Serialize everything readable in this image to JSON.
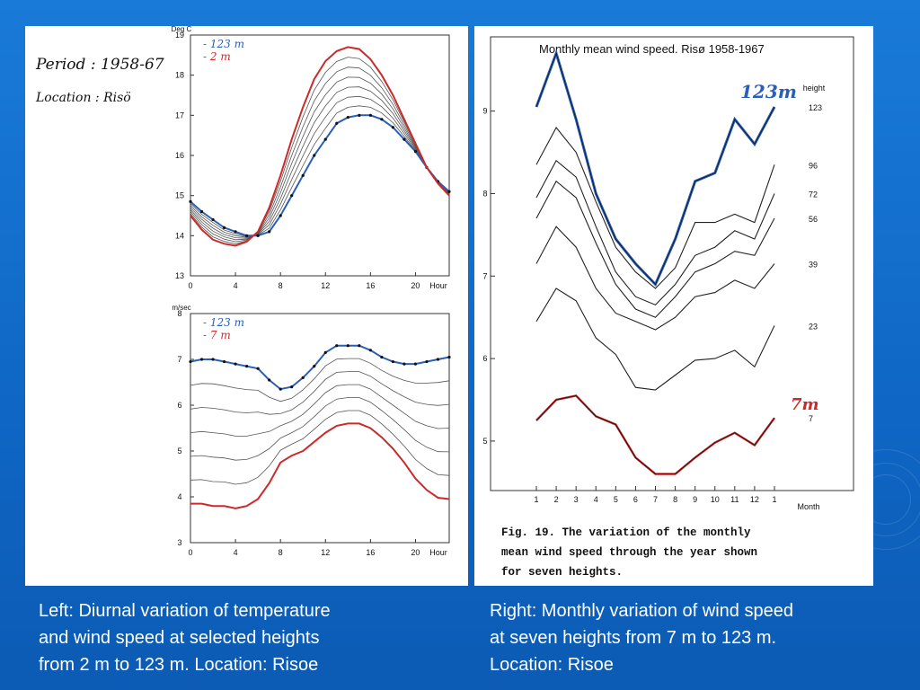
{
  "captions": {
    "left": [
      "Left: Diurnal variation of temperature",
      "and wind speed at selected heights",
      "from 2 m to 123 m. Location: Risoe"
    ],
    "right": [
      "Right: Monthly variation of wind speed",
      "at  seven heights from 7 m to 123 m.",
      "Location: Risoe"
    ]
  },
  "notes": {
    "period": "Period : 1958-67",
    "location": "Location : Risö"
  },
  "colors": {
    "background": "#1470d0",
    "blue_series": "#2a5fb8",
    "red_series": "#cc2a2a",
    "black_series": "#222222",
    "gray_series": "#555555"
  },
  "chart_data": [
    {
      "type": "line",
      "ylabel": "Deg C",
      "xlabel": "Hour",
      "xlim": [
        0,
        23
      ],
      "ylim": [
        13,
        19
      ],
      "xticks": [
        "0",
        "4",
        "8",
        "12",
        "16",
        "20"
      ],
      "yticks": [
        "13",
        "14",
        "15",
        "16",
        "17",
        "18",
        "19"
      ],
      "legend": [
        {
          "label": "- 123 m",
          "color": "blue"
        },
        {
          "label": "- 2 m",
          "color": "red"
        }
      ],
      "x": [
        0,
        1,
        2,
        3,
        4,
        5,
        6,
        7,
        8,
        9,
        10,
        11,
        12,
        13,
        14,
        15,
        16,
        17,
        18,
        19,
        20,
        21,
        22,
        23
      ],
      "series": [
        {
          "name": "123 m",
          "color": "blue",
          "values": [
            14.85,
            14.6,
            14.4,
            14.2,
            14.1,
            14.0,
            14.0,
            14.1,
            14.5,
            15.0,
            15.5,
            16.0,
            16.4,
            16.8,
            16.95,
            17.0,
            17.0,
            16.9,
            16.7,
            16.4,
            16.1,
            15.7,
            15.35,
            15.1
          ]
        },
        {
          "value_curve": "2 m",
          "color": "red",
          "values": [
            14.5,
            14.15,
            13.9,
            13.8,
            13.75,
            13.85,
            14.1,
            14.7,
            15.5,
            16.4,
            17.2,
            17.9,
            18.35,
            18.6,
            18.7,
            18.65,
            18.4,
            18.0,
            17.5,
            16.9,
            16.3,
            15.7,
            15.3,
            15.0
          ],
          "name": "2 m"
        }
      ]
    },
    {
      "type": "line",
      "ylabel": "m/sec",
      "xlabel": "Hour",
      "xlim": [
        0,
        23
      ],
      "ylim": [
        3,
        8
      ],
      "xticks": [
        "0",
        "4",
        "8",
        "12",
        "16",
        "20"
      ],
      "yticks": [
        "3",
        "4",
        "5",
        "6",
        "7",
        "8"
      ],
      "legend": [
        {
          "label": "- 123 m",
          "color": "blue"
        },
        {
          "label": "- 7 m",
          "color": "red"
        }
      ],
      "x": [
        0,
        1,
        2,
        3,
        4,
        5,
        6,
        7,
        8,
        9,
        10,
        11,
        12,
        13,
        14,
        15,
        16,
        17,
        18,
        19,
        20,
        21,
        22,
        23
      ],
      "series": [
        {
          "name": "123 m",
          "color": "blue",
          "values": [
            6.95,
            7.0,
            7.0,
            6.95,
            6.9,
            6.85,
            6.8,
            6.55,
            6.35,
            6.4,
            6.6,
            6.85,
            7.15,
            7.3,
            7.3,
            7.3,
            7.2,
            7.05,
            6.95,
            6.9,
            6.9,
            6.95,
            7.0,
            7.05
          ]
        },
        {
          "name": "7 m",
          "color": "red",
          "values": [
            3.85,
            3.85,
            3.8,
            3.8,
            3.75,
            3.8,
            3.95,
            4.3,
            4.75,
            4.9,
            5.0,
            5.2,
            5.4,
            5.55,
            5.6,
            5.6,
            5.5,
            5.3,
            5.05,
            4.75,
            4.4,
            4.15,
            3.98,
            3.95
          ]
        }
      ]
    },
    {
      "type": "line",
      "title": "Monthly mean wind speed. Risø 1958-1967",
      "xlabel": "Month",
      "ylim": [
        4.4,
        9.9
      ],
      "yticks": [
        "5",
        "6",
        "7",
        "8",
        "9"
      ],
      "categories": [
        "1",
        "2",
        "3",
        "4",
        "5",
        "6",
        "7",
        "8",
        "9",
        "10",
        "11",
        "12",
        "1"
      ],
      "height_header": "height",
      "series": [
        {
          "name": "123",
          "values": [
            9.05,
            9.7,
            8.9,
            8.0,
            7.45,
            7.15,
            6.9,
            7.45,
            8.15,
            8.25,
            8.9,
            8.6,
            9.05
          ]
        },
        {
          "name": "96",
          "values": [
            8.35,
            8.8,
            8.5,
            7.9,
            7.35,
            7.05,
            6.85,
            7.1,
            7.65,
            7.65,
            7.75,
            7.65,
            8.35
          ]
        },
        {
          "name": "72",
          "values": [
            7.95,
            8.4,
            8.2,
            7.6,
            7.05,
            6.75,
            6.65,
            6.9,
            7.25,
            7.35,
            7.55,
            7.45,
            8.0
          ]
        },
        {
          "name": "56",
          "values": [
            7.7,
            8.15,
            7.95,
            7.4,
            6.9,
            6.6,
            6.5,
            6.75,
            7.05,
            7.15,
            7.3,
            7.25,
            7.7
          ]
        },
        {
          "name": "39",
          "values": [
            7.15,
            7.6,
            7.35,
            6.85,
            6.55,
            6.45,
            6.35,
            6.5,
            6.75,
            6.8,
            6.95,
            6.85,
            7.15
          ]
        },
        {
          "name": "23",
          "values": [
            6.45,
            6.85,
            6.7,
            6.25,
            6.05,
            5.65,
            5.62,
            5.8,
            5.98,
            6.0,
            6.1,
            5.9,
            6.4
          ]
        },
        {
          "name": "7",
          "values": [
            5.25,
            5.5,
            5.55,
            5.3,
            5.2,
            4.8,
            4.6,
            4.6,
            4.8,
            4.98,
            5.1,
            4.95,
            5.28
          ]
        }
      ],
      "annotations": [
        "123m",
        "7m"
      ],
      "caption_lines": [
        "Fig. 19.  The variation of the monthly",
        "mean wind speed through the year shown",
        "for seven heights."
      ]
    }
  ]
}
